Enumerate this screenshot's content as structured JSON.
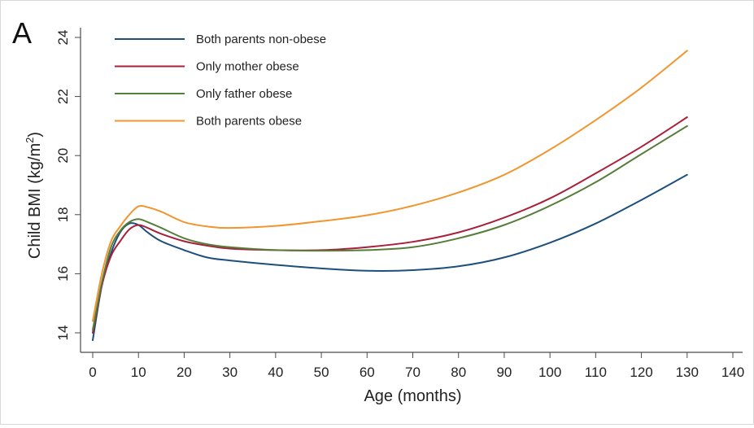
{
  "panel_label": "A",
  "chart_data": {
    "type": "line",
    "title": "",
    "xlabel": "Age (months)",
    "ylabel": "Child BMI (kg/m2)",
    "ylabel_main": "Child BMI (kg/m",
    "ylabel_sup": "2",
    "ylabel_close": ")",
    "xlim": [
      0,
      140
    ],
    "ylim": [
      13.7,
      24.2
    ],
    "xticks": [
      0,
      10,
      20,
      30,
      40,
      50,
      60,
      70,
      80,
      90,
      100,
      110,
      120,
      130,
      140
    ],
    "yticks": [
      14,
      16,
      18,
      20,
      22,
      24
    ],
    "grid": false,
    "legend_placement": "top-left",
    "series": [
      {
        "name": "Both parents non-obese",
        "color": "#1c4f7c",
        "x": [
          0,
          2,
          4,
          6,
          8,
          10,
          12,
          15,
          20,
          25,
          30,
          40,
          50,
          60,
          70,
          80,
          90,
          100,
          110,
          120,
          130
        ],
        "y": [
          13.75,
          15.6,
          16.7,
          17.4,
          17.7,
          17.65,
          17.4,
          17.1,
          16.8,
          16.55,
          16.45,
          16.3,
          16.18,
          16.1,
          16.12,
          16.25,
          16.55,
          17.05,
          17.7,
          18.5,
          19.35
        ]
      },
      {
        "name": "Only mother obese",
        "color": "#a8203a",
        "x": [
          0,
          2,
          4,
          6,
          8,
          10,
          12,
          15,
          20,
          25,
          30,
          40,
          50,
          60,
          70,
          80,
          90,
          100,
          110,
          120,
          130
        ],
        "y": [
          14.0,
          15.6,
          16.6,
          17.1,
          17.5,
          17.65,
          17.55,
          17.35,
          17.1,
          16.95,
          16.85,
          16.8,
          16.8,
          16.9,
          17.08,
          17.4,
          17.9,
          18.55,
          19.4,
          20.3,
          21.3
        ]
      },
      {
        "name": "Only father obese",
        "color": "#567d3a",
        "x": [
          0,
          2,
          4,
          6,
          8,
          10,
          12,
          15,
          20,
          25,
          30,
          40,
          50,
          60,
          70,
          80,
          90,
          100,
          110,
          120,
          130
        ],
        "y": [
          14.1,
          15.7,
          16.9,
          17.45,
          17.75,
          17.85,
          17.75,
          17.55,
          17.2,
          17.0,
          16.9,
          16.8,
          16.78,
          16.8,
          16.9,
          17.2,
          17.65,
          18.3,
          19.1,
          20.05,
          21.0
        ]
      },
      {
        "name": "Both parents obese",
        "color": "#f0962f",
        "x": [
          0,
          2,
          4,
          6,
          8,
          10,
          12,
          15,
          20,
          25,
          30,
          40,
          50,
          60,
          70,
          80,
          90,
          100,
          110,
          120,
          130
        ],
        "y": [
          14.4,
          16.0,
          17.1,
          17.6,
          18.0,
          18.28,
          18.25,
          18.1,
          17.75,
          17.6,
          17.55,
          17.62,
          17.78,
          17.98,
          18.3,
          18.75,
          19.35,
          20.2,
          21.2,
          22.3,
          23.55
        ]
      }
    ]
  }
}
